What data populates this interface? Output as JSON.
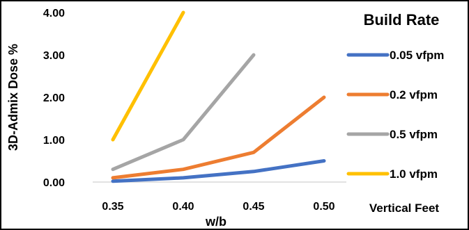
{
  "chart_data": {
    "type": "line",
    "title": "",
    "xlabel": "w/b",
    "ylabel": "3D-Admix Dose %",
    "x": [
      "0.35",
      "0.40",
      "0.45",
      "0.50"
    ],
    "x_values": [
      0.35,
      0.4,
      0.45,
      0.5
    ],
    "ylim": [
      0,
      4
    ],
    "yticks": [
      "0.00",
      "1.00",
      "2.00",
      "3.00",
      "4.00"
    ],
    "grid": false,
    "legend_title": "Build Rate",
    "legend_position": "right",
    "legend_footer": "Vertical Feet",
    "series": [
      {
        "name": "0.05 vfpm",
        "color": "#4472C4",
        "x": [
          0.35,
          0.4,
          0.45,
          0.5
        ],
        "values": [
          0.02,
          0.1,
          0.25,
          0.5
        ]
      },
      {
        "name": "0.2 vfpm",
        "color": "#ED7D31",
        "x": [
          0.35,
          0.4,
          0.45,
          0.5
        ],
        "values": [
          0.1,
          0.3,
          0.7,
          2.0
        ]
      },
      {
        "name": "0.5 vfpm",
        "color": "#A5A5A5",
        "x": [
          0.35,
          0.4,
          0.45
        ],
        "values": [
          0.3,
          1.0,
          3.0
        ]
      },
      {
        "name": "1.0 vfpm",
        "color": "#FFC000",
        "x": [
          0.35,
          0.4
        ],
        "values": [
          1.0,
          4.0
        ]
      }
    ]
  }
}
